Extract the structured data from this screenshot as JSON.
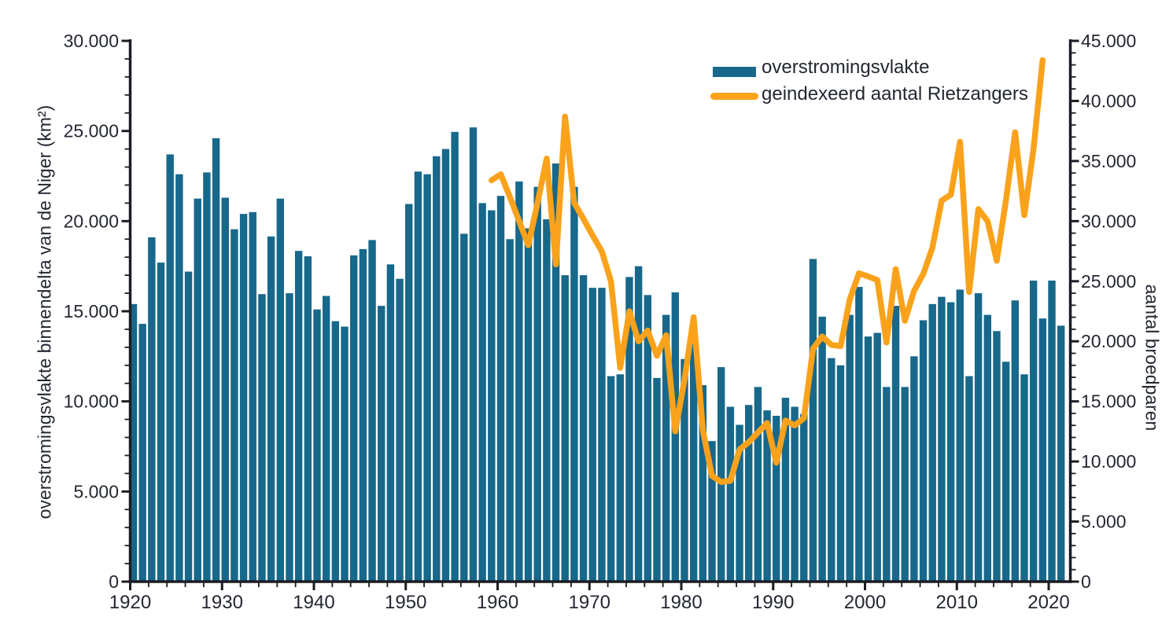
{
  "chart_data": {
    "type": "bar",
    "subtype": "dual-axis bar+line combination chart",
    "title": "",
    "background": "#ffffff",
    "colors": {
      "bar": "#17688A",
      "line": "#FAA21B",
      "axis": "#1A1D23",
      "text": "#232731"
    },
    "legend": {
      "position": "top-center-right inside plot",
      "items": [
        {
          "label": "overstromingsvlakte",
          "type": "bar",
          "color": "#17688A"
        },
        {
          "label": "geindexeerd aantal Rietzangers",
          "type": "line",
          "color": "#FAA21B"
        }
      ]
    },
    "left_axis": {
      "label": "overstromingsvlakte binnendelta van de Niger (km²)",
      "max": 30000,
      "major_tick_step": 5000,
      "minor_tick_step": 1000,
      "major_ticks": [
        0,
        5000,
        10000,
        15000,
        20000,
        25000,
        30000
      ]
    },
    "right_axis": {
      "label": "aantal broedparen",
      "max": 45000,
      "major_tick_step": 5000,
      "minor_tick_step": 1000,
      "major_ticks": [
        0,
        5000,
        10000,
        15000,
        20000,
        25000,
        30000,
        35000,
        40000,
        45000
      ]
    },
    "x_axis": {
      "label_ticks": [
        1920,
        1930,
        1940,
        1950,
        1960,
        1970,
        1980,
        1990,
        2000,
        2010,
        2020
      ],
      "minor_tick_step_years": 2,
      "range": [
        1920,
        2021
      ]
    },
    "bars": {
      "name": "overstromingsvlakte",
      "unit": "km2",
      "years": [
        1920,
        1921,
        1922,
        1923,
        1924,
        1925,
        1926,
        1927,
        1928,
        1929,
        1930,
        1931,
        1932,
        1933,
        1934,
        1935,
        1936,
        1937,
        1938,
        1939,
        1940,
        1941,
        1942,
        1943,
        1944,
        1945,
        1946,
        1947,
        1948,
        1949,
        1950,
        1951,
        1952,
        1953,
        1954,
        1955,
        1956,
        1957,
        1958,
        1959,
        1960,
        1961,
        1962,
        1963,
        1964,
        1965,
        1966,
        1967,
        1968,
        1969,
        1970,
        1971,
        1972,
        1973,
        1974,
        1975,
        1976,
        1977,
        1978,
        1979,
        1980,
        1981,
        1982,
        1983,
        1984,
        1985,
        1986,
        1987,
        1988,
        1989,
        1990,
        1991,
        1992,
        1993,
        1994,
        1995,
        1996,
        1997,
        1998,
        1999,
        2000,
        2001,
        2002,
        2003,
        2004,
        2005,
        2006,
        2007,
        2008,
        2009,
        2010,
        2011,
        2012,
        2013,
        2014,
        2015,
        2016,
        2017,
        2018,
        2019,
        2020,
        2021
      ],
      "values": [
        15400,
        14300,
        19100,
        17700,
        23700,
        22600,
        17200,
        21250,
        22700,
        24600,
        21300,
        19550,
        20400,
        20500,
        15950,
        19150,
        21250,
        16000,
        18350,
        18050,
        15100,
        15850,
        14450,
        14150,
        18100,
        18450,
        18950,
        15300,
        17600,
        16800,
        20950,
        22750,
        22600,
        23600,
        24000,
        24950,
        19300,
        25200,
        21000,
        20600,
        21400,
        19000,
        22200,
        19600,
        21900,
        20100,
        23200,
        17000,
        21900,
        17000,
        16300,
        16300,
        11400,
        11500,
        16900,
        17500,
        15900,
        11300,
        14800,
        16050,
        12350,
        13800,
        10900,
        7800,
        11900,
        9700,
        8700,
        9800,
        10800,
        9500,
        9200,
        10200,
        9700,
        9300,
        17900,
        14700,
        12400,
        12000,
        14800,
        16350,
        13600,
        13800,
        10800,
        15300,
        10800,
        12500,
        14500,
        15400,
        15800,
        15500,
        16200,
        11400,
        16000,
        14800,
        13900,
        12200,
        15600,
        11500,
        16700,
        14600,
        16700,
        14200
      ]
    },
    "line": {
      "name": "geindexeerd aantal Rietzangers",
      "unit": "broedparen",
      "years": [
        1959,
        1960,
        1961,
        1962,
        1963,
        1964,
        1965,
        1966,
        1967,
        1968,
        1969,
        1970,
        1971,
        1972,
        1973,
        1974,
        1975,
        1976,
        1977,
        1978,
        1979,
        1980,
        1981,
        1982,
        1983,
        1984,
        1985,
        1986,
        1987,
        1988,
        1989,
        1990,
        1991,
        1992,
        1993,
        1994,
        1995,
        1996,
        1997,
        1998,
        1999,
        2000,
        2001,
        2002,
        2003,
        2004,
        2005,
        2006,
        2007,
        2008,
        2009,
        2010,
        2011,
        2012,
        2013,
        2014,
        2015,
        2016,
        2017,
        2018,
        2019
      ],
      "values": [
        33400,
        33900,
        32000,
        30000,
        28000,
        31500,
        35200,
        26400,
        38700,
        31500,
        30200,
        28800,
        27500,
        25000,
        17800,
        22500,
        20000,
        20900,
        18800,
        20500,
        12500,
        16800,
        22000,
        12600,
        8800,
        8300,
        8400,
        11000,
        11600,
        12400,
        13200,
        9900,
        13400,
        13000,
        13600,
        19400,
        20400,
        19700,
        19600,
        23500,
        25650,
        25400,
        25100,
        19900,
        26000,
        21700,
        24200,
        25600,
        27800,
        31700,
        32200,
        36600,
        24100,
        31000,
        30000,
        26700,
        31700,
        37400,
        30500,
        36000,
        43400
      ]
    }
  }
}
